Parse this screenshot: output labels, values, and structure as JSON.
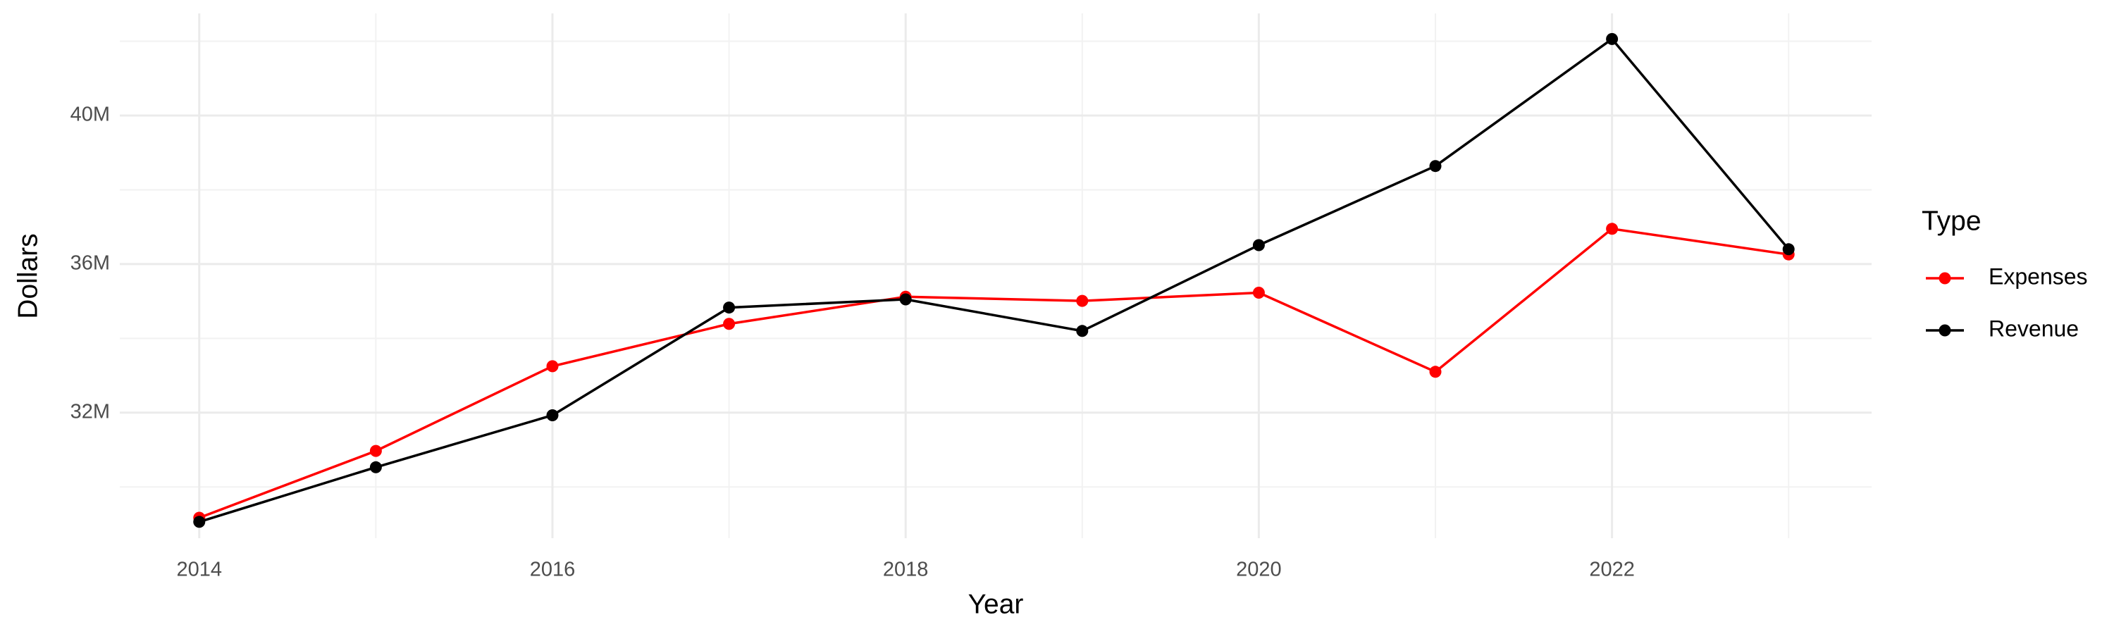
{
  "chart_data": {
    "type": "line",
    "x_label": "Year",
    "y_label": "Dollars",
    "legend_title": "Type",
    "x": [
      2014,
      2015,
      2016,
      2017,
      2018,
      2019,
      2020,
      2021,
      2022,
      2023
    ],
    "series": [
      {
        "name": "Expenses",
        "color": "#ff0000",
        "values": [
          29170000,
          30970000,
          33250000,
          34390000,
          35120000,
          35010000,
          35230000,
          33100000,
          36950000,
          36260000
        ]
      },
      {
        "name": "Revenue",
        "color": "#000000",
        "values": [
          29060000,
          30530000,
          31930000,
          34830000,
          35050000,
          34200000,
          36510000,
          38640000,
          42060000,
          36400000
        ]
      }
    ],
    "xlim": [
      2013.55,
      2023.47
    ],
    "xticks": [
      2014,
      2016,
      2018,
      2020,
      2022
    ],
    "ylim": [
      28620000,
      42750000
    ],
    "yticks": [
      {
        "value": 32000000,
        "label": "32M"
      },
      {
        "value": 36000000,
        "label": "36M"
      },
      {
        "value": 40000000,
        "label": "40M"
      }
    ],
    "grid": true,
    "legend": "right"
  }
}
